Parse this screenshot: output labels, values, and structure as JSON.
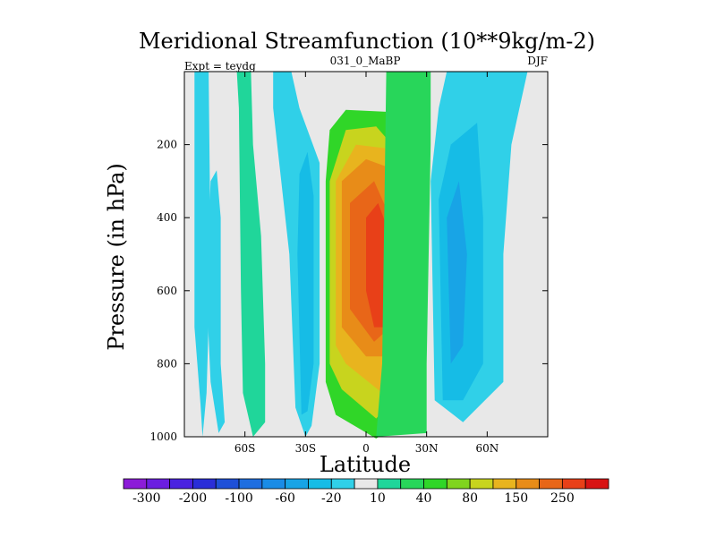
{
  "chart_data": {
    "type": "heatmap",
    "title": "Meridional Streamfunction (10**9kg/m-2)",
    "left_subtitle": "Expt = teydg",
    "center_subtitle": "031_0_MaBP",
    "right_subtitle": "DJF",
    "xlabel": "Latitude",
    "ylabel": "Pressure (in hPa)",
    "xlim": [
      -90,
      90
    ],
    "ylim": [
      0,
      1000
    ],
    "x_ticks": [
      {
        "value": -60,
        "label": "60S"
      },
      {
        "value": -30,
        "label": "30S"
      },
      {
        "value": 0,
        "label": "0"
      },
      {
        "value": 30,
        "label": "30N"
      },
      {
        "value": 60,
        "label": "60N"
      }
    ],
    "y_ticks": [
      {
        "value": 200,
        "label": "200"
      },
      {
        "value": 400,
        "label": "400"
      },
      {
        "value": 600,
        "label": "600"
      },
      {
        "value": 800,
        "label": "800"
      },
      {
        "value": 1000,
        "label": "1000"
      }
    ],
    "background_color": "#e8e8e8",
    "colorbar": {
      "levels": [
        -300,
        -250,
        -200,
        -150,
        -100,
        -80,
        -60,
        -40,
        -20,
        -10,
        10,
        20,
        40,
        60,
        80,
        100,
        150,
        200,
        250,
        300
      ],
      "labels": [
        "-300",
        "-200",
        "-100",
        "-60",
        "-20",
        "10",
        "40",
        "80",
        "150",
        "250"
      ],
      "colors": [
        "#8c1cd8",
        "#6b1ee0",
        "#4a22e0",
        "#2a2ed8",
        "#1e50d8",
        "#1e6ee0",
        "#1a8ce6",
        "#18a4e6",
        "#16bce6",
        "#30d0e8",
        "#e8e8e8",
        "#20d69a",
        "#28d65a",
        "#30d628",
        "#80d41e",
        "#c8d41e",
        "#e8b41e",
        "#e88c18",
        "#e86618",
        "#e84018",
        "#d81414"
      ]
    },
    "contours": [
      {
        "level_index": 9,
        "points": [
          [
            -81,
            1000
          ],
          [
            -82,
            910
          ],
          [
            -85,
            700
          ],
          [
            -85,
            0
          ],
          [
            -78,
            0
          ],
          [
            -77,
            500
          ],
          [
            -79,
            880
          ],
          [
            -81,
            1000
          ]
        ]
      },
      {
        "level_index": 9,
        "points": [
          [
            -73,
            990
          ],
          [
            -77,
            850
          ],
          [
            -79,
            600
          ],
          [
            -77,
            300
          ],
          [
            -74,
            270
          ],
          [
            -72,
            400
          ],
          [
            -72,
            800
          ],
          [
            -70,
            960
          ],
          [
            -73,
            990
          ]
        ]
      },
      {
        "level_index": 11,
        "points": [
          [
            -56,
            1000
          ],
          [
            -61,
            880
          ],
          [
            -62,
            600
          ],
          [
            -63,
            100
          ],
          [
            -64,
            0
          ],
          [
            -57,
            0
          ],
          [
            -56,
            200
          ],
          [
            -52,
            450
          ],
          [
            -50,
            800
          ],
          [
            -50,
            960
          ],
          [
            -56,
            1000
          ]
        ]
      },
      {
        "level_index": 9,
        "points": [
          [
            -30,
            1000
          ],
          [
            -35,
            920
          ],
          [
            -38,
            500
          ],
          [
            -46,
            100
          ],
          [
            -46,
            0
          ],
          [
            -37,
            0
          ],
          [
            -33,
            100
          ],
          [
            -23,
            250
          ],
          [
            -23,
            800
          ],
          [
            -27,
            970
          ],
          [
            -30,
            1000
          ]
        ]
      },
      {
        "level_index": 8,
        "points": [
          [
            -32,
            940
          ],
          [
            -34,
            500
          ],
          [
            -33,
            280
          ],
          [
            -29,
            220
          ],
          [
            -26,
            340
          ],
          [
            -26,
            800
          ],
          [
            -29,
            930
          ]
        ]
      },
      {
        "level_index": 13,
        "points": [
          [
            -20,
            850
          ],
          [
            -20,
            300
          ],
          [
            -18,
            160
          ],
          [
            -10,
            105
          ],
          [
            10,
            110
          ],
          [
            20,
            160
          ],
          [
            22,
            300
          ],
          [
            26,
            800
          ],
          [
            26,
            930
          ],
          [
            5,
            1005
          ],
          [
            -15,
            940
          ],
          [
            -20,
            850
          ]
        ]
      },
      {
        "level_index": 15,
        "points": [
          [
            -18,
            800
          ],
          [
            -18,
            300
          ],
          [
            -10,
            160
          ],
          [
            5,
            150
          ],
          [
            16,
            220
          ],
          [
            20,
            500
          ],
          [
            22,
            850
          ],
          [
            5,
            950
          ],
          [
            -12,
            870
          ],
          [
            -18,
            800
          ]
        ]
      },
      {
        "level_index": 16,
        "points": [
          [
            -15,
            750
          ],
          [
            -15,
            300
          ],
          [
            -5,
            200
          ],
          [
            10,
            210
          ],
          [
            16,
            400
          ],
          [
            18,
            800
          ],
          [
            8,
            880
          ],
          [
            -10,
            800
          ],
          [
            -15,
            750
          ]
        ]
      },
      {
        "level_index": 17,
        "points": [
          [
            -12,
            700
          ],
          [
            -12,
            300
          ],
          [
            0,
            240
          ],
          [
            10,
            260
          ],
          [
            14,
            500
          ],
          [
            14,
            780
          ],
          [
            0,
            780
          ],
          [
            -12,
            700
          ]
        ]
      },
      {
        "level_index": 18,
        "points": [
          [
            -8,
            650
          ],
          [
            -8,
            360
          ],
          [
            4,
            300
          ],
          [
            12,
            400
          ],
          [
            12,
            700
          ],
          [
            4,
            740
          ],
          [
            -8,
            650
          ]
        ]
      },
      {
        "level_index": 19,
        "points": [
          [
            0,
            600
          ],
          [
            0,
            400
          ],
          [
            6,
            360
          ],
          [
            10,
            420
          ],
          [
            10,
            700
          ],
          [
            4,
            700
          ],
          [
            0,
            600
          ]
        ]
      },
      {
        "level_index": 12,
        "points": [
          [
            5,
            1000
          ],
          [
            8,
            800
          ],
          [
            10,
            0
          ],
          [
            32,
            0
          ],
          [
            32,
            200
          ],
          [
            30,
            800
          ],
          [
            30,
            990
          ],
          [
            5,
            1000
          ]
        ]
      },
      {
        "level_index": 9,
        "points": [
          [
            34,
            900
          ],
          [
            32,
            300
          ],
          [
            36,
            100
          ],
          [
            40,
            0
          ],
          [
            80,
            0
          ],
          [
            76,
            100
          ],
          [
            72,
            200
          ],
          [
            68,
            500
          ],
          [
            68,
            850
          ],
          [
            48,
            960
          ],
          [
            34,
            900
          ]
        ]
      },
      {
        "level_index": 8,
        "points": [
          [
            38,
            900
          ],
          [
            36,
            350
          ],
          [
            42,
            200
          ],
          [
            55,
            140
          ],
          [
            58,
            400
          ],
          [
            58,
            800
          ],
          [
            48,
            900
          ],
          [
            38,
            900
          ]
        ]
      },
      {
        "level_index": 7,
        "points": [
          [
            42,
            800
          ],
          [
            40,
            400
          ],
          [
            46,
            300
          ],
          [
            50,
            500
          ],
          [
            48,
            750
          ],
          [
            42,
            800
          ]
        ]
      }
    ]
  }
}
